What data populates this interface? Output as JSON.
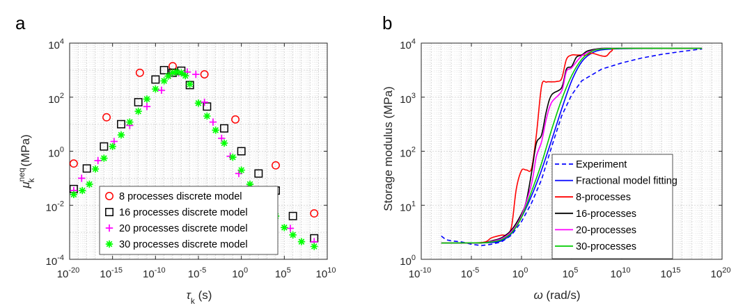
{
  "chart_data": [
    {
      "panel": "a",
      "type": "scatter",
      "title": "",
      "xlabel": "τk (s)",
      "ylabel": "μk neq (MPa)",
      "xscale": "log",
      "yscale": "log",
      "xlim": [
        1e-20,
        10000000000.0
      ],
      "ylim": [
        0.0001,
        10000.0
      ],
      "xticks": [
        1e-20,
        1e-15,
        1e-10,
        1e-05,
        1.0,
        100000.0,
        10000000000.0
      ],
      "xtick_labels": [
        [
          "10",
          "-20"
        ],
        [
          "10",
          "-15"
        ],
        [
          "10",
          "-10"
        ],
        [
          "10",
          "-5"
        ],
        [
          "10",
          "0"
        ],
        [
          "10",
          "5"
        ],
        [
          "10",
          "10"
        ]
      ],
      "yticks": [
        0.0001,
        0.01,
        1.0,
        100.0,
        10000.0
      ],
      "ytick_labels": [
        [
          "10",
          "-4"
        ],
        [
          "10",
          "-2"
        ],
        [
          "10",
          "0"
        ],
        [
          "10",
          "2"
        ],
        [
          "10",
          "4"
        ]
      ],
      "grid": true,
      "legend_location": "bottom-left",
      "series": [
        {
          "name": "8 processes discrete model",
          "marker": "circle",
          "color": "#ff0000",
          "x": [
            3e-20,
            2e-16,
            1.5e-12,
            1e-08,
            5e-05,
            0.2,
            10000.0,
            300000000.0
          ],
          "y": [
            0.35,
            18,
            800,
            1400,
            700,
            15,
            0.3,
            0.005
          ]
        },
        {
          "name": "16 processes discrete model",
          "marker": "square",
          "color": "#000000",
          "x": [
            3e-20,
            1e-18,
            1e-16,
            1e-14,
            1e-12,
            1e-10,
            1e-09,
            1e-08,
            1e-07,
            1e-06,
            0.0001,
            0.01,
            1.0,
            100.0,
            10000.0,
            1000000.0,
            300000000.0
          ],
          "y": [
            0.04,
            0.23,
            1.5,
            10,
            65,
            450,
            1000,
            800,
            950,
            280,
            45,
            7,
            1,
            0.15,
            0.035,
            0.004,
            0.0006
          ]
        },
        {
          "name": "20 processes discrete model",
          "marker": "plus",
          "color": "#ff00ff",
          "x": [
            3e-20,
            2.5e-19,
            2e-17,
            1.5e-15,
            1e-13,
            1e-11,
            5e-10,
            5e-09,
            5e-08,
            5e-07,
            5e-06,
            5e-05,
            0.0005,
            0.005,
            0.05,
            0.5,
            5.0,
            50.0,
            5000.0,
            500000.0,
            300000000.0
          ],
          "y": [
            0.035,
            0.1,
            0.45,
            2.3,
            9,
            45,
            180,
            650,
            800,
            850,
            700,
            65,
            12,
            3,
            0.65,
            0.15,
            0.04,
            0.012,
            0.003,
            0.0014,
            0.00045
          ]
        },
        {
          "name": "30 processes discrete model",
          "marker": "asterisk",
          "color": "#00ff00",
          "x": [
            3e-20,
            3e-19,
            2e-18,
            1e-17,
            1e-16,
            1e-15,
            1e-14,
            1e-13,
            1e-12,
            1e-11,
            1e-10,
            1e-09,
            3e-09,
            1e-08,
            3e-08,
            1e-07,
            3e-07,
            1e-06,
            1e-05,
            0.0001,
            0.001,
            0.01,
            0.1,
            1.0,
            10.0,
            100.0,
            1000.0,
            10000.0,
            100000.0,
            1000000.0,
            10000000.0,
            300000000.0
          ],
          "y": [
            0.025,
            0.035,
            0.06,
            0.22,
            0.55,
            1.5,
            4,
            12,
            30,
            85,
            200,
            400,
            600,
            800,
            850,
            800,
            620,
            300,
            60,
            20,
            6,
            2,
            0.6,
            0.2,
            0.06,
            0.022,
            0.009,
            0.004,
            0.0015,
            0.0008,
            0.00045,
            0.0003
          ]
        }
      ]
    },
    {
      "panel": "b",
      "type": "line",
      "title": "",
      "xlabel": "ω (rad/s)",
      "ylabel": "Storage modulus (MPa)",
      "xscale": "log",
      "yscale": "log",
      "xlim": [
        1e-10,
        1e+20
      ],
      "ylim": [
        1.0,
        10000.0
      ],
      "xticks": [
        1e-10,
        1e-05,
        1.0,
        100000.0,
        10000000000.0,
        1000000000000000.0,
        1e+20
      ],
      "xtick_labels": [
        [
          "10",
          "-10"
        ],
        [
          "10",
          "-5"
        ],
        [
          "10",
          "0"
        ],
        [
          "10",
          "5"
        ],
        [
          "10",
          "10"
        ],
        [
          "10",
          "15"
        ],
        [
          "10",
          "20"
        ]
      ],
      "yticks": [
        1.0,
        10.0,
        100.0,
        1000.0,
        10000.0
      ],
      "ytick_labels": [
        [
          "10",
          "0"
        ],
        [
          "10",
          "1"
        ],
        [
          "10",
          "2"
        ],
        [
          "10",
          "3"
        ],
        [
          "10",
          "4"
        ]
      ],
      "grid": true,
      "legend_location": "bottom-right",
      "series": [
        {
          "name": "Experiment",
          "color": "#0000ff",
          "style": "dashed",
          "x": [
            1e-08,
            3e-08,
            1e-07,
            1e-06,
            1e-05,
            0.0001,
            0.001,
            0.01,
            0.1,
            1.0,
            10.0,
            100.0,
            1000.0,
            10000.0,
            100000.0,
            1000000.0,
            100000000.0,
            10000000000.0,
            1000000000000.0,
            100000000000000.0,
            1e+16,
            1e+18
          ],
          "y": [
            2.7,
            2.3,
            2.2,
            2.1,
            1.9,
            1.8,
            1.9,
            2.1,
            2.8,
            5,
            11,
            30,
            120,
            450,
            1100,
            2000,
            3300,
            4300,
            5300,
            6200,
            7000,
            7800
          ]
        },
        {
          "name": "Fractional model fitting",
          "color": "#0000ff",
          "style": "solid",
          "x": [
            1e-08,
            1e-05,
            0.001,
            0.01,
            0.1,
            1.0,
            10.0,
            100.0,
            1000.0,
            10000.0,
            100000.0,
            1000000.0,
            10000000.0,
            100000000.0,
            10000000000.0,
            100000000000000.0,
            1e+18
          ],
          "y": [
            2.0,
            2.0,
            2.05,
            2.2,
            3.0,
            6,
            15,
            45,
            160,
            600,
            2000,
            4500,
            6500,
            7500,
            7900,
            8000,
            8000
          ]
        },
        {
          "name": "8-processes",
          "color": "#ff0000",
          "style": "solid",
          "x": [
            1e-08,
            0.0001,
            0.001,
            0.01,
            0.03,
            0.1,
            0.3,
            1.0,
            3.0,
            10.0,
            30.0,
            100.0,
            300.0,
            1000.0,
            3000.0,
            10000.0,
            30000.0,
            100000.0,
            300000.0,
            1000000.0,
            3000000.0,
            10000000.0,
            100000000.0,
            300000000.0,
            1000000000.0,
            10000000000.0,
            1e+18
          ],
          "y": [
            2.0,
            2.05,
            2.5,
            2.8,
            2.85,
            4,
            20,
            44,
            45,
            48,
            200,
            1600,
            1900,
            1920,
            1950,
            2200,
            5000,
            6000,
            6000,
            6000,
            6000,
            6500,
            5800,
            5800,
            7200,
            8000,
            8000
          ]
        },
        {
          "name": "16-processes",
          "color": "#000000",
          "style": "solid",
          "x": [
            1e-08,
            0.0001,
            0.001,
            0.01,
            0.1,
            1.0,
            3.0,
            10.0,
            30.0,
            100.0,
            300.0,
            1000.0,
            10000.0,
            30000.0,
            100000.0,
            300000.0,
            1000000.0,
            3000000.0,
            10000000.0,
            100000000.0,
            10000000000.0,
            1e+18
          ],
          "y": [
            2.0,
            2.02,
            2.2,
            2.5,
            3.5,
            7,
            12,
            40,
            140,
            200,
            550,
            1100,
            1500,
            3300,
            3700,
            5500,
            6000,
            7000,
            7500,
            8000,
            8000,
            8000
          ]
        },
        {
          "name": "20-processes",
          "color": "#ff00ff",
          "style": "solid",
          "x": [
            1e-08,
            0.0001,
            0.001,
            0.01,
            0.1,
            1.0,
            10.0,
            30.0,
            100.0,
            300.0,
            1000.0,
            10000.0,
            30000.0,
            100000.0,
            1000000.0,
            10000000.0,
            100000000.0,
            10000000000.0,
            1e+18
          ],
          "y": [
            2.0,
            2.02,
            2.15,
            2.4,
            3.3,
            6.5,
            25,
            80,
            150,
            400,
            800,
            1300,
            3000,
            3500,
            5800,
            7200,
            7900,
            8000,
            8000
          ]
        },
        {
          "name": "30-processes",
          "color": "#00cc00",
          "style": "solid",
          "x": [
            1e-08,
            0.0001,
            0.001,
            0.01,
            0.1,
            1.0,
            10.0,
            100.0,
            1000.0,
            10000.0,
            100000.0,
            1000000.0,
            10000000.0,
            100000000.0,
            10000000000.0,
            1e+18
          ],
          "y": [
            2.0,
            2.02,
            2.1,
            2.3,
            3.1,
            6,
            18,
            60,
            250,
            900,
            2500,
            5000,
            7000,
            7800,
            8000,
            8000
          ]
        }
      ]
    }
  ],
  "panel_a_letter": "a",
  "panel_b_letter": "b",
  "colors": {
    "axis": "#262626",
    "grid": "#dedede",
    "background": "#ffffff"
  }
}
